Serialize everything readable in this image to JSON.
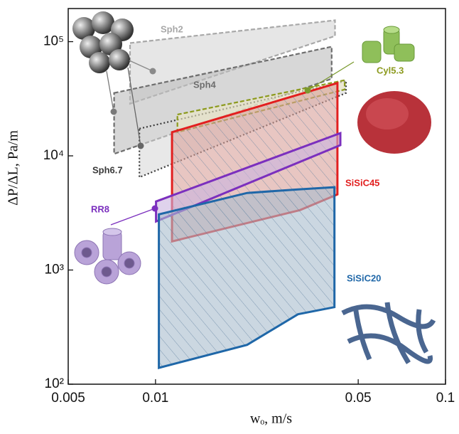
{
  "chart_data": {
    "type": "region",
    "x_label": "wₒ, m/s",
    "y_label": "ΔP/ΔL, Pa/m",
    "xscale": "log",
    "yscale": "log",
    "xlim": [
      0.005,
      0.1
    ],
    "xticks": [
      0.005,
      0.01,
      0.05,
      0.1
    ],
    "ylim": [
      100,
      195000
    ],
    "yticks": [
      {
        "value": 100,
        "label": "10²"
      },
      {
        "value": 1000,
        "label": "10³"
      },
      {
        "value": 10000,
        "label": "10⁴"
      },
      {
        "value": 100000,
        "label": "10⁵"
      }
    ],
    "series": [
      {
        "name": "Sph2",
        "color": "#a8a8a8",
        "fill": "#d6d6d6",
        "dash": "dashed",
        "hatch": false,
        "x": [
          0.00817,
          0.0416,
          0.0416,
          0.00817
        ],
        "values": [
          97200,
          154000,
          112000,
          28600
        ]
      },
      {
        "name": "Sph4",
        "color": "#6e6e6e",
        "fill": "#bdbdbd",
        "dash": "dashed",
        "hatch": false,
        "x": [
          0.0072,
          0.0405,
          0.0405,
          0.0072
        ],
        "values": [
          35500,
          90400,
          47300,
          10400
        ]
      },
      {
        "name": "Sph6.7",
        "color": "#3a3a3a",
        "fill": "#d9d9d9",
        "dash": "dotted",
        "hatch": false,
        "x": [
          0.0088,
          0.0454,
          0.0454,
          0.0088
        ],
        "values": [
          17300,
          45300,
          35500,
          6490
        ]
      },
      {
        "name": "Cyl5.3",
        "color": "#8c9a1e",
        "fill": "#ece8c4",
        "dash": "dashed",
        "hatch": false,
        "x": [
          0.0119,
          0.0449,
          0.0449,
          0.0119
        ],
        "values": [
          23000,
          46000,
          38100,
          16100
        ]
      },
      {
        "name": "SiSiC45",
        "color": "#e21f1f",
        "fill": "#d9a09a",
        "dash": "solid",
        "hatch": true,
        "x": [
          0.0114,
          0.0424,
          0.0424,
          0.0315,
          0.0114
        ],
        "values": [
          16100,
          43400,
          4600,
          3350,
          1780
        ]
      },
      {
        "name": "RR8",
        "color": "#7b2fbe",
        "fill": "#c9b4e0",
        "dash": "solid",
        "hatch": false,
        "x": [
          0.01004,
          0.0434,
          0.0434,
          0.01004
        ],
        "values": [
          3980,
          15800,
          12400,
          2660
        ]
      },
      {
        "name": "SiSiC20",
        "color": "#1f67a8",
        "fill": "#a9bccd",
        "dash": "solid",
        "hatch": true,
        "x": [
          0.01027,
          0.0207,
          0.031,
          0.0414,
          0.0414,
          0.031,
          0.0207,
          0.01027
        ],
        "values": [
          139,
          221,
          410,
          473,
          5310,
          5080,
          4730,
          3070
        ]
      }
    ]
  }
}
